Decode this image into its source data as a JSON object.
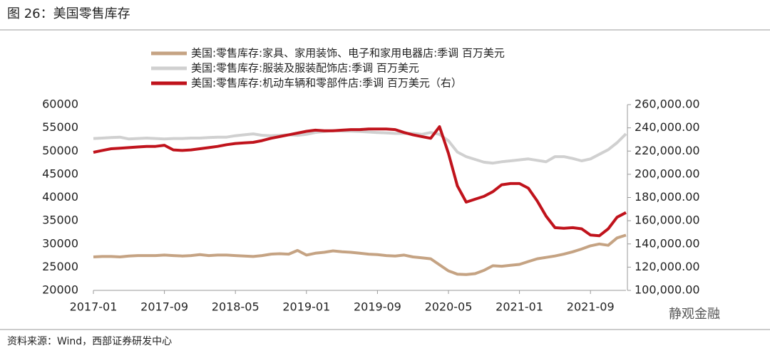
{
  "title": "图 26：美国零售库存",
  "source": "资料来源：Wind，西部证券研发中心",
  "watermark": "静观金融",
  "chart_data": {
    "type": "line",
    "categories": [
      "2017-01",
      null,
      null,
      null,
      null,
      null,
      null,
      null,
      "2017-09",
      null,
      null,
      null,
      null,
      null,
      null,
      null,
      "2018-05",
      null,
      null,
      null,
      null,
      null,
      null,
      null,
      "2019-01",
      null,
      null,
      null,
      null,
      null,
      null,
      null,
      "2019-09",
      null,
      null,
      null,
      null,
      null,
      null,
      null,
      "2020-05",
      null,
      null,
      null,
      null,
      null,
      null,
      null,
      "2021-01",
      null,
      null,
      null,
      null,
      null,
      null,
      null,
      "2021-09",
      null,
      null,
      null,
      null
    ],
    "ylim": [
      20000,
      60000
    ],
    "yticks": [
      20000,
      25000,
      30000,
      35000,
      40000,
      45000,
      50000,
      55000,
      60000
    ],
    "y2lim": [
      100000,
      260000
    ],
    "y2ticks": [
      {
        "value": 100000,
        "label": "100,000.00"
      },
      {
        "value": 120000,
        "label": "120,000.00"
      },
      {
        "value": 140000,
        "label": "140,000.00"
      },
      {
        "value": 160000,
        "label": "160,000.00"
      },
      {
        "value": 180000,
        "label": "180,000.00"
      },
      {
        "value": 200000,
        "label": "200,000.00"
      },
      {
        "value": 220000,
        "label": "220,000.00"
      },
      {
        "value": 240000,
        "label": "240,000.00"
      },
      {
        "value": 260000,
        "label": "260,000.00"
      }
    ],
    "series": [
      {
        "name": "美国:零售库存:家具、家用装饰、电子和家用电器店:季调 百万美元",
        "color": "#c5a383",
        "values": [
          27200,
          27300,
          27300,
          27200,
          27400,
          27500,
          27500,
          27500,
          27600,
          27500,
          27400,
          27500,
          27700,
          27500,
          27600,
          27600,
          27500,
          27400,
          27300,
          27500,
          27800,
          27900,
          27800,
          28600,
          27600,
          28000,
          28200,
          28500,
          28300,
          28200,
          28000,
          27800,
          27700,
          27500,
          27400,
          27600,
          27200,
          27000,
          26800,
          25500,
          24200,
          23500,
          23400,
          23600,
          24300,
          25300,
          25200,
          25400,
          25600,
          26200,
          26800,
          27100,
          27400,
          27800,
          28300,
          28900,
          29600,
          30000,
          29700,
          31300,
          31900
        ]
      },
      {
        "name": "美国:零售库存:服装及服装配饰店:季调 百万美元",
        "color": "#d0d0d0",
        "values": [
          52700,
          52800,
          52900,
          53000,
          52600,
          52700,
          52800,
          52700,
          52600,
          52700,
          52700,
          52800,
          52800,
          52900,
          53000,
          53000,
          53300,
          53500,
          53700,
          53400,
          53300,
          53400,
          53500,
          53400,
          53600,
          54000,
          54200,
          54400,
          54300,
          54300,
          54200,
          54100,
          54000,
          53900,
          53800,
          53800,
          53800,
          53600,
          54000,
          53600,
          52200,
          49800,
          48800,
          48200,
          47600,
          47400,
          47700,
          47900,
          48100,
          48300,
          48000,
          47700,
          48800,
          48800,
          48400,
          47900,
          48300,
          49300,
          50300,
          51800,
          53700
        ]
      },
      {
        "name": "美国:零售库存:机动车辆和零部件店:季调 百万美元（右）",
        "color": "#c0131c",
        "axis": "y2",
        "values": [
          218900,
          220500,
          222000,
          222500,
          223000,
          223500,
          224000,
          224000,
          225000,
          221000,
          220500,
          221000,
          222000,
          223000,
          224000,
          225500,
          226500,
          227000,
          227500,
          229000,
          231000,
          232500,
          234000,
          235500,
          237000,
          238000,
          237500,
          237500,
          238000,
          238500,
          238500,
          239000,
          239000,
          239000,
          238500,
          236000,
          234000,
          232500,
          231000,
          241000,
          218000,
          190000,
          176000,
          178500,
          181000,
          185000,
          191000,
          192000,
          192000,
          188000,
          177000,
          164000,
          154000,
          153500,
          154000,
          153000,
          147700,
          147000,
          153000,
          163000,
          167000
        ]
      }
    ]
  }
}
